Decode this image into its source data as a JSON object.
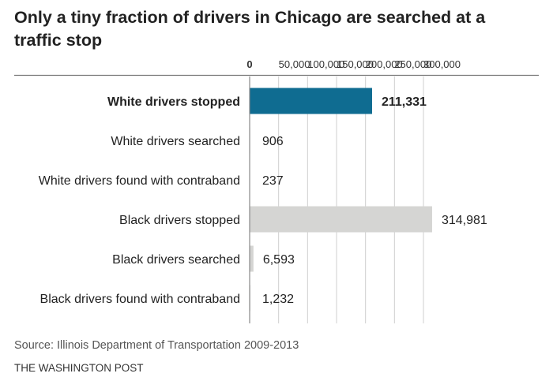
{
  "title": "Only a tiny fraction of drivers in Chicago are searched at a traffic stop",
  "source": "Source: Illinois Department of Transportation 2009-2013",
  "brand": "THE WASHINGTON POST",
  "colors": {
    "highlight": "#0f6c91",
    "bar": "#d5d5d3",
    "label": "#222222",
    "grid": "#cfcfcf",
    "axis": "#777777"
  },
  "chart_data": {
    "type": "bar",
    "orientation": "horizontal",
    "categories": [
      "White drivers stopped",
      "White drivers searched",
      "White drivers found with contraband",
      "Black drivers stopped",
      "Black drivers searched",
      "Black drivers found with contraband"
    ],
    "values": [
      211331,
      906,
      237,
      314981,
      6593,
      1232
    ],
    "value_labels": [
      "211,331",
      "906",
      "237",
      "314,981",
      "6,593",
      "1,232"
    ],
    "highlight_index": 0,
    "xlim": [
      0,
      315000
    ],
    "x_ticks": [
      0,
      50000,
      100000,
      150000,
      200000,
      250000,
      300000
    ],
    "x_tick_labels": [
      "0",
      "50,000",
      "100,000",
      "150,000",
      "200,000",
      "250,000",
      "300,000"
    ],
    "grid": true,
    "title": "Only a tiny fraction of drivers in Chicago are searched at a traffic stop",
    "xlabel": "",
    "ylabel": ""
  }
}
